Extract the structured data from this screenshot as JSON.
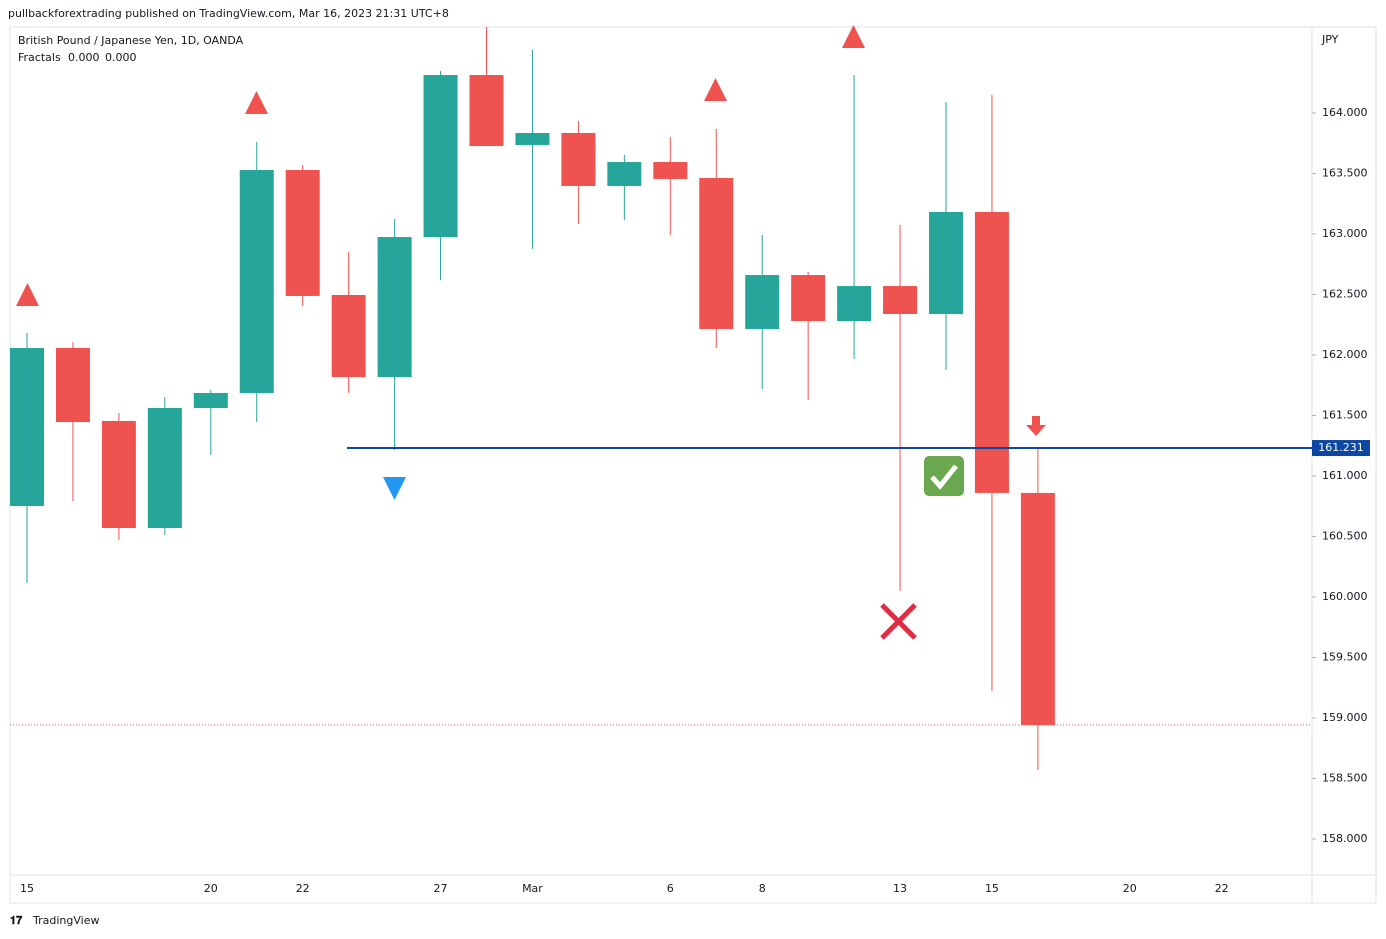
{
  "header": {
    "published": "pullbackforextrading published on TradingView.com, Mar 16, 2023 21:31 UTC+8"
  },
  "chart_data": {
    "type": "candlestick",
    "title": "British Pound / Japanese Yen, 1D, OANDA",
    "indicator": {
      "name": "Fractals",
      "values": [
        "0.000",
        "0.000"
      ],
      "colors": [
        "#ef5350",
        "#2196f3"
      ]
    },
    "currency": "JPY",
    "categories": [
      "15",
      null,
      null,
      null,
      "20",
      null,
      "22",
      null,
      null,
      "27",
      null,
      "Mar",
      null,
      null,
      "6",
      null,
      "8",
      null,
      null,
      "13",
      null,
      "15",
      null,
      null,
      "20",
      null,
      "22"
    ],
    "open": [
      160.752,
      162.058,
      161.455,
      160.57,
      161.562,
      161.686,
      163.529,
      162.496,
      161.818,
      162.975,
      164.314,
      163.736,
      163.835,
      163.397,
      163.595,
      163.463,
      162.215,
      162.661,
      162.281,
      162.57,
      162.339,
      163.182,
      160.86,
      null,
      null,
      null,
      null
    ],
    "high": [
      162.182,
      162.107,
      161.521,
      161.653,
      161.711,
      163.76,
      163.57,
      162.851,
      163.124,
      164.347,
      164.75,
      164.521,
      163.934,
      163.653,
      163.802,
      163.868,
      162.992,
      162.686,
      164.314,
      163.074,
      164.091,
      164.149,
      161.24,
      null,
      null,
      null,
      null
    ],
    "low": [
      160.116,
      160.793,
      160.471,
      160.512,
      161.174,
      161.446,
      162.405,
      161.686,
      161.215,
      162.62,
      163.727,
      162.876,
      163.083,
      163.116,
      162.992,
      162.058,
      161.719,
      161.628,
      161.967,
      160.05,
      161.876,
      159.223,
      158.57,
      null,
      null,
      null,
      null
    ],
    "close": [
      162.058,
      161.446,
      160.57,
      161.562,
      161.686,
      163.529,
      162.488,
      161.818,
      162.975,
      164.314,
      163.727,
      163.835,
      163.397,
      163.595,
      163.455,
      162.215,
      162.661,
      162.281,
      162.57,
      162.339,
      163.182,
      160.86,
      158.942,
      null,
      null,
      null,
      null
    ],
    "up_color": "#26a69a",
    "down_color": "#ef5350",
    "hline": {
      "value": 161.231,
      "color": "#0d47a1"
    },
    "ylim": [
      157.702,
      164.711
    ],
    "yticks": [
      {
        "value": 158,
        "label": "158.000"
      },
      {
        "value": 158.5,
        "label": "158.500"
      },
      {
        "value": 159,
        "label": "159.000"
      },
      {
        "value": 159.5,
        "label": "159.500"
      },
      {
        "value": 160,
        "label": "160.000"
      },
      {
        "value": 160.5,
        "label": "160.500"
      },
      {
        "value": 161,
        "label": "161.000"
      },
      {
        "value": 161.5,
        "label": "161.500"
      },
      {
        "value": 162,
        "label": "162.000"
      },
      {
        "value": 162.5,
        "label": "162.500"
      },
      {
        "value": 163,
        "label": "163.000"
      },
      {
        "value": 163.5,
        "label": "163.500"
      },
      {
        "value": 164,
        "label": "164.000"
      }
    ]
  },
  "footer": {
    "brand": "TradingView"
  }
}
